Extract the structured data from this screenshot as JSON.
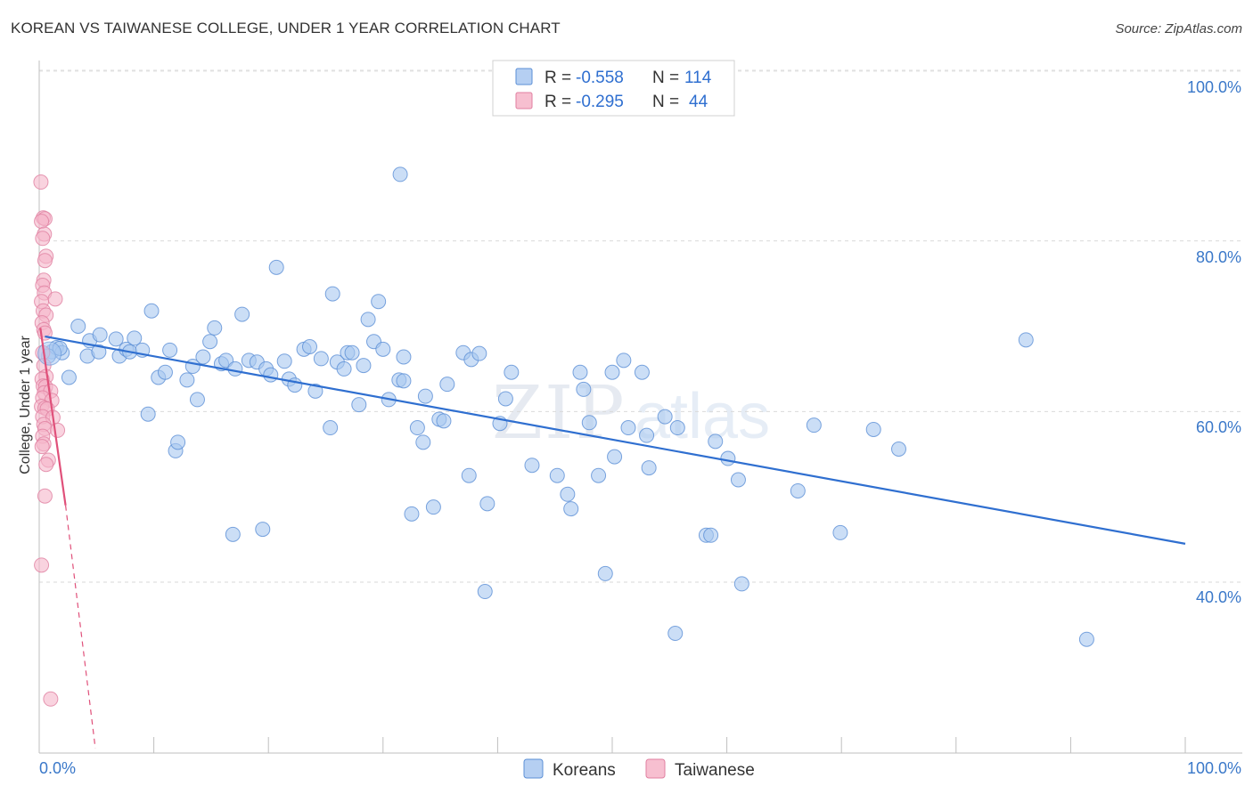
{
  "chart_data": {
    "type": "scatter",
    "title": "KOREAN VS TAIWANESE COLLEGE, UNDER 1 YEAR CORRELATION CHART",
    "source": "Source: ZipAtlas.com",
    "xlabel": "",
    "ylabel": "College, Under 1 year",
    "x_tick_labels": [
      "0.0%",
      "100.0%"
    ],
    "y_tick_labels": [
      "100.0%",
      "80.0%",
      "60.0%",
      "40.0%"
    ],
    "y_ticks": [
      100,
      80,
      60,
      40
    ],
    "xlim": [
      0,
      100
    ],
    "ylim": [
      20,
      102
    ],
    "grid": true,
    "legend_position": "top-center",
    "watermark": "ZIPatlas",
    "colors": {
      "Koreans": "#5b8fd6",
      "Koreans_fill": "#a9c8f0",
      "Koreans_line": "#2f6fd0",
      "Taiwanese": "#e07fa0",
      "Taiwanese_fill": "#f5b6c9",
      "Taiwanese_line": "#e0507a",
      "value_text": "#2f6fd0",
      "label_text": "#333333"
    },
    "stats": [
      {
        "series": "Koreans",
        "r_label": "R =",
        "r": "-0.558",
        "n_label": "N =",
        "n": "114"
      },
      {
        "series": "Taiwanese",
        "r_label": "R =",
        "r": "-0.295",
        "n_label": "N =",
        "n": "44"
      }
    ],
    "trendlines": [
      {
        "series": "Koreans",
        "x0": 0.5,
        "y0": 68.8,
        "x1": 100,
        "y1": 44.5,
        "style": "solid"
      },
      {
        "series": "Taiwanese",
        "x0": 0.1,
        "y0": 69.8,
        "x1": 2.3,
        "y1": 49.0,
        "style": "solid"
      },
      {
        "series": "Taiwanese",
        "x0": 2.3,
        "y0": 49.0,
        "x1": 4.9,
        "y1": 20.5,
        "style": "dashed"
      }
    ],
    "series": [
      {
        "name": "Koreans",
        "points": [
          [
            1.1,
            67.0
          ],
          [
            1.5,
            67.5
          ],
          [
            2.0,
            66.9
          ],
          [
            2.6,
            64.0
          ],
          [
            3.4,
            70.0
          ],
          [
            4.4,
            68.3
          ],
          [
            5.3,
            69.0
          ],
          [
            4.2,
            66.5
          ],
          [
            5.2,
            67.0
          ],
          [
            6.7,
            68.5
          ],
          [
            7.0,
            66.5
          ],
          [
            7.6,
            67.3
          ],
          [
            7.9,
            67.0
          ],
          [
            8.3,
            68.6
          ],
          [
            9.8,
            71.8
          ],
          [
            10.4,
            64.0
          ],
          [
            11.0,
            64.6
          ],
          [
            9.5,
            59.7
          ],
          [
            11.4,
            67.2
          ],
          [
            11.9,
            55.4
          ],
          [
            12.1,
            56.4
          ],
          [
            12.9,
            63.7
          ],
          [
            13.4,
            65.3
          ],
          [
            13.8,
            61.4
          ],
          [
            14.3,
            66.4
          ],
          [
            14.9,
            68.2
          ],
          [
            15.3,
            69.8
          ],
          [
            15.9,
            65.6
          ],
          [
            16.3,
            66.0
          ],
          [
            16.9,
            45.6
          ],
          [
            17.1,
            65.0
          ],
          [
            17.7,
            71.4
          ],
          [
            18.3,
            66.0
          ],
          [
            19.0,
            65.8
          ],
          [
            19.5,
            46.2
          ],
          [
            19.8,
            65.0
          ],
          [
            20.2,
            64.3
          ],
          [
            20.7,
            76.9
          ],
          [
            21.4,
            65.9
          ],
          [
            21.8,
            63.8
          ],
          [
            22.3,
            63.1
          ],
          [
            23.1,
            67.3
          ],
          [
            23.6,
            67.6
          ],
          [
            24.1,
            62.4
          ],
          [
            24.6,
            66.2
          ],
          [
            25.4,
            58.1
          ],
          [
            25.6,
            73.8
          ],
          [
            26.0,
            65.8
          ],
          [
            26.6,
            65.0
          ],
          [
            26.9,
            66.9
          ],
          [
            27.3,
            66.9
          ],
          [
            27.9,
            60.8
          ],
          [
            28.3,
            65.4
          ],
          [
            28.7,
            70.8
          ],
          [
            29.2,
            68.2
          ],
          [
            29.6,
            72.9
          ],
          [
            30.0,
            67.3
          ],
          [
            30.5,
            61.4
          ],
          [
            31.4,
            63.7
          ],
          [
            31.8,
            66.4
          ],
          [
            31.5,
            87.8
          ],
          [
            31.8,
            63.6
          ],
          [
            32.5,
            48.0
          ],
          [
            33.0,
            58.1
          ],
          [
            33.5,
            56.4
          ],
          [
            33.7,
            61.8
          ],
          [
            34.4,
            48.8
          ],
          [
            34.9,
            59.1
          ],
          [
            35.3,
            58.9
          ],
          [
            35.6,
            63.2
          ],
          [
            37.0,
            66.9
          ],
          [
            37.5,
            52.5
          ],
          [
            37.7,
            66.1
          ],
          [
            38.4,
            66.8
          ],
          [
            38.9,
            38.9
          ],
          [
            39.1,
            49.2
          ],
          [
            40.2,
            58.6
          ],
          [
            40.7,
            61.5
          ],
          [
            41.2,
            64.6
          ],
          [
            43.0,
            53.7
          ],
          [
            45.2,
            52.5
          ],
          [
            46.1,
            50.3
          ],
          [
            46.4,
            48.6
          ],
          [
            47.2,
            64.6
          ],
          [
            47.5,
            62.6
          ],
          [
            48.0,
            58.7
          ],
          [
            48.8,
            52.5
          ],
          [
            49.4,
            41.0
          ],
          [
            50.0,
            64.6
          ],
          [
            50.2,
            54.7
          ],
          [
            51.0,
            66.0
          ],
          [
            51.4,
            58.1
          ],
          [
            52.6,
            64.6
          ],
          [
            53.0,
            57.2
          ],
          [
            53.2,
            53.4
          ],
          [
            54.6,
            59.4
          ],
          [
            55.7,
            58.1
          ],
          [
            58.2,
            45.5
          ],
          [
            58.6,
            45.5
          ],
          [
            59.0,
            56.5
          ],
          [
            60.1,
            54.5
          ],
          [
            61.0,
            52.0
          ],
          [
            61.3,
            39.8
          ],
          [
            55.5,
            34.0
          ],
          [
            66.2,
            50.7
          ],
          [
            67.6,
            58.4
          ],
          [
            69.9,
            45.8
          ],
          [
            72.8,
            57.9
          ],
          [
            75.0,
            55.6
          ],
          [
            86.1,
            68.4
          ],
          [
            91.4,
            33.3
          ],
          [
            0.8,
            66.5
          ],
          [
            1.8,
            67.4
          ],
          [
            9.0,
            67.2
          ]
        ]
      },
      {
        "name": "Taiwanese",
        "points": [
          [
            0.15,
            86.9
          ],
          [
            0.35,
            82.7
          ],
          [
            0.5,
            82.6
          ],
          [
            0.2,
            82.3
          ],
          [
            0.45,
            80.8
          ],
          [
            0.3,
            80.3
          ],
          [
            0.6,
            78.2
          ],
          [
            0.5,
            77.7
          ],
          [
            0.4,
            75.4
          ],
          [
            0.3,
            74.8
          ],
          [
            0.45,
            73.9
          ],
          [
            1.4,
            73.2
          ],
          [
            0.2,
            72.9
          ],
          [
            0.35,
            71.8
          ],
          [
            0.6,
            71.3
          ],
          [
            0.25,
            70.4
          ],
          [
            0.4,
            69.6
          ],
          [
            0.5,
            69.2
          ],
          [
            0.3,
            66.9
          ],
          [
            0.4,
            65.4
          ],
          [
            0.6,
            64.1
          ],
          [
            0.25,
            63.8
          ],
          [
            0.35,
            63.0
          ],
          [
            0.55,
            62.9
          ],
          [
            0.45,
            62.2
          ],
          [
            1.0,
            62.4
          ],
          [
            0.3,
            61.6
          ],
          [
            1.1,
            61.3
          ],
          [
            0.2,
            60.6
          ],
          [
            0.5,
            60.4
          ],
          [
            0.7,
            60.3
          ],
          [
            0.3,
            59.4
          ],
          [
            1.2,
            59.3
          ],
          [
            0.4,
            58.5
          ],
          [
            0.5,
            58.0
          ],
          [
            1.6,
            57.8
          ],
          [
            0.3,
            57.1
          ],
          [
            0.4,
            56.2
          ],
          [
            0.25,
            55.9
          ],
          [
            0.8,
            54.3
          ],
          [
            0.6,
            53.8
          ],
          [
            0.5,
            50.1
          ],
          [
            0.2,
            42.0
          ],
          [
            1.0,
            26.3
          ]
        ]
      }
    ]
  },
  "legend": {
    "items": [
      {
        "label": "Koreans"
      },
      {
        "label": "Taiwanese"
      }
    ]
  }
}
